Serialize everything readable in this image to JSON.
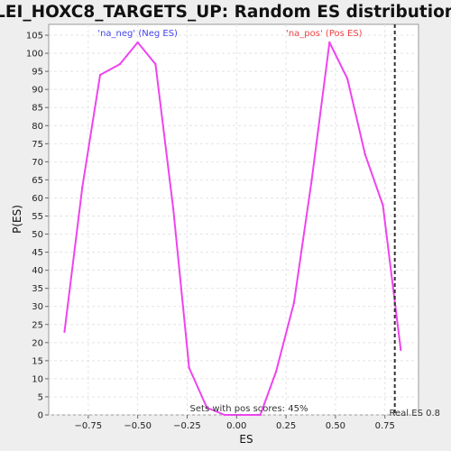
{
  "chart_data": {
    "type": "line",
    "title": "LEI_HOXC8_TARGETS_UP: Random ES distribution",
    "xlabel": "ES",
    "ylabel": "P(ES)",
    "xlim": [
      -0.95,
      0.92
    ],
    "ylim": [
      0,
      108
    ],
    "x_ticks": [
      -0.75,
      -0.5,
      -0.25,
      0.0,
      0.25,
      0.5,
      0.75
    ],
    "x_tick_labels": [
      "−0.75",
      "−0.50",
      "−0.25",
      "0.00",
      "0.25",
      "0.50",
      "0.75"
    ],
    "y_ticks": [
      0,
      5,
      10,
      15,
      20,
      25,
      30,
      35,
      40,
      45,
      50,
      55,
      60,
      65,
      70,
      75,
      80,
      85,
      90,
      95,
      100,
      105
    ],
    "grid": true,
    "series": [
      {
        "color": "#ee44ee",
        "x": [
          -0.87,
          -0.78,
          -0.69,
          -0.59,
          -0.5,
          -0.41,
          -0.32,
          -0.24,
          -0.15,
          -0.06,
          0.02,
          0.12,
          0.2,
          0.29,
          0.38,
          0.47,
          0.56,
          0.65,
          0.74,
          0.83
        ],
        "y": [
          23,
          63,
          94,
          97,
          103,
          97,
          57,
          13,
          2,
          0,
          0,
          0,
          12,
          31,
          65,
          103,
          93,
          72,
          58,
          18
        ]
      }
    ],
    "annotations": {
      "neg": {
        "text": "'na_neg' (Neg ES)",
        "color": "#4444ee",
        "x": -0.5
      },
      "pos": {
        "text": "'na_pos' (Pos ES)",
        "color": "#ee4444",
        "x": 0.47
      },
      "pos_scores": {
        "text": "Sets with pos scores: 45%"
      },
      "real_es": {
        "text": "Real ES 0.8",
        "x": 0.8
      }
    }
  }
}
